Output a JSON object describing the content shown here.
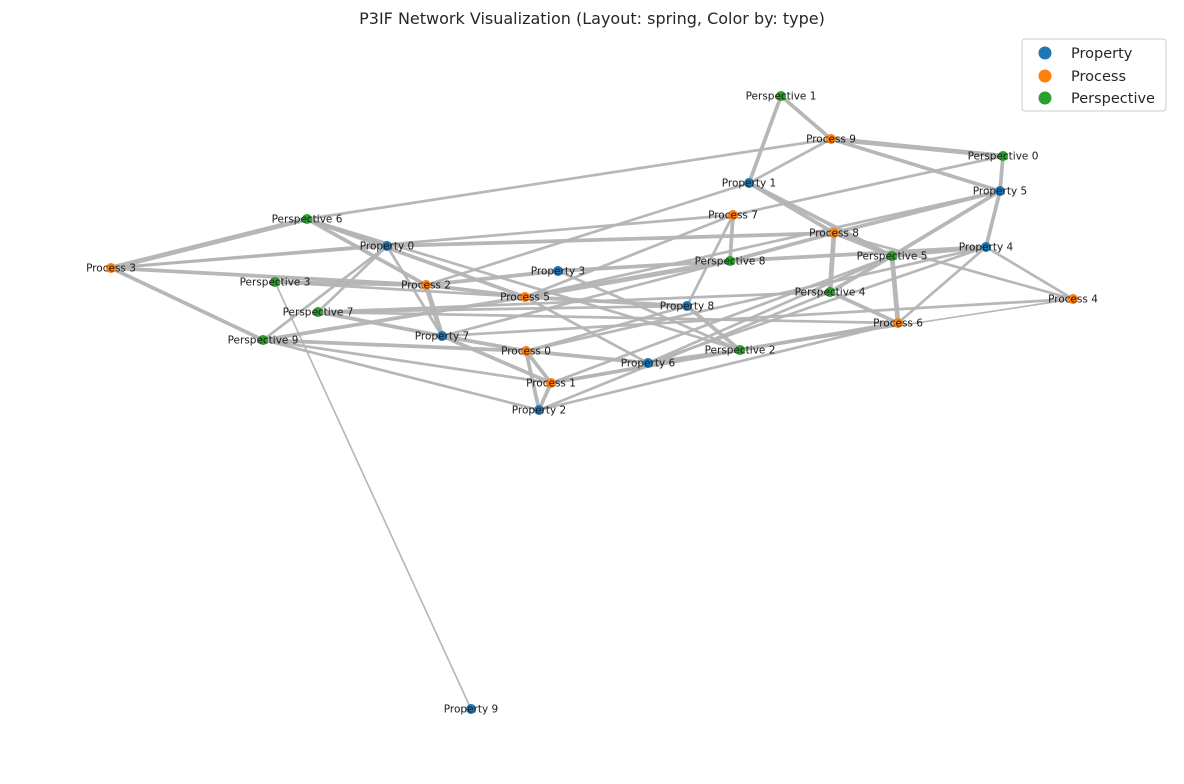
{
  "title": "P3IF Network Visualization (Layout: spring, Color by: type)",
  "legend": {
    "placement": "top-right",
    "items": [
      {
        "label": "Property",
        "color": "#1f77b4"
      },
      {
        "label": "Process",
        "color": "#ff7f0e"
      },
      {
        "label": "Perspective",
        "color": "#2ca02c"
      }
    ]
  },
  "edge_color": "#b3b3b3",
  "nodes": [
    {
      "id": "Perspective 1",
      "type": "Perspective"
    },
    {
      "id": "Process 9",
      "type": "Process"
    },
    {
      "id": "Perspective 0",
      "type": "Perspective"
    },
    {
      "id": "Property 1",
      "type": "Property"
    },
    {
      "id": "Property 5",
      "type": "Property"
    },
    {
      "id": "Process 7",
      "type": "Process"
    },
    {
      "id": "Perspective 6",
      "type": "Perspective"
    },
    {
      "id": "Process 8",
      "type": "Process"
    },
    {
      "id": "Property 0",
      "type": "Property"
    },
    {
      "id": "Property 4",
      "type": "Property"
    },
    {
      "id": "Perspective 5",
      "type": "Perspective"
    },
    {
      "id": "Process 3",
      "type": "Process"
    },
    {
      "id": "Perspective 8",
      "type": "Perspective"
    },
    {
      "id": "Property 3",
      "type": "Property"
    },
    {
      "id": "Perspective 3",
      "type": "Perspective"
    },
    {
      "id": "Process 2",
      "type": "Process"
    },
    {
      "id": "Perspective 4",
      "type": "Perspective"
    },
    {
      "id": "Process 5",
      "type": "Process"
    },
    {
      "id": "Process 4",
      "type": "Process"
    },
    {
      "id": "Property 8",
      "type": "Property"
    },
    {
      "id": "Perspective 7",
      "type": "Perspective"
    },
    {
      "id": "Process 6",
      "type": "Process"
    },
    {
      "id": "Property 7",
      "type": "Property"
    },
    {
      "id": "Perspective 9",
      "type": "Perspective"
    },
    {
      "id": "Process 0",
      "type": "Process"
    },
    {
      "id": "Perspective 2",
      "type": "Perspective"
    },
    {
      "id": "Property 6",
      "type": "Property"
    },
    {
      "id": "Process 1",
      "type": "Process"
    },
    {
      "id": "Property 2",
      "type": "Property"
    },
    {
      "id": "Property 9",
      "type": "Property"
    }
  ],
  "edges": [
    {
      "source": "Perspective 1",
      "target": "Process 9",
      "weight": 3
    },
    {
      "source": "Perspective 1",
      "target": "Property 1",
      "weight": 3
    },
    {
      "source": "Process 9",
      "target": "Perspective 0",
      "weight": 4
    },
    {
      "source": "Process 9",
      "target": "Property 5",
      "weight": 3
    },
    {
      "source": "Process 9",
      "target": "Property 1",
      "weight": 2
    },
    {
      "source": "Process 9",
      "target": "Perspective 6",
      "weight": 2
    },
    {
      "source": "Perspective 0",
      "target": "Property 5",
      "weight": 3
    },
    {
      "source": "Perspective 0",
      "target": "Process 7",
      "weight": 2
    },
    {
      "source": "Property 1",
      "target": "Process 8",
      "weight": 3
    },
    {
      "source": "Property 1",
      "target": "Perspective 5",
      "weight": 3
    },
    {
      "source": "Property 1",
      "target": "Process 2",
      "weight": 2
    },
    {
      "source": "Property 5",
      "target": "Process 8",
      "weight": 3
    },
    {
      "source": "Property 5",
      "target": "Perspective 5",
      "weight": 3
    },
    {
      "source": "Property 5",
      "target": "Property 4",
      "weight": 3
    },
    {
      "source": "Property 5",
      "target": "Process 5",
      "weight": 2
    },
    {
      "source": "Process 7",
      "target": "Perspective 8",
      "weight": 3
    },
    {
      "source": "Process 7",
      "target": "Property 8",
      "weight": 2
    },
    {
      "source": "Process 7",
      "target": "Process 3",
      "weight": 2
    },
    {
      "source": "Process 7",
      "target": "Process 5",
      "weight": 2
    },
    {
      "source": "Perspective 6",
      "target": "Property 0",
      "weight": 3
    },
    {
      "source": "Perspective 6",
      "target": "Process 3",
      "weight": 4
    },
    {
      "source": "Perspective 6",
      "target": "Process 2",
      "weight": 3
    },
    {
      "source": "Perspective 6",
      "target": "Process 5",
      "weight": 3
    },
    {
      "source": "Perspective 6",
      "target": "Perspective 2",
      "weight": 2
    },
    {
      "source": "Process 8",
      "target": "Property 0",
      "weight": 3
    },
    {
      "source": "Process 8",
      "target": "Perspective 5",
      "weight": 3
    },
    {
      "source": "Process 8",
      "target": "Perspective 4",
      "weight": 4
    },
    {
      "source": "Process 8",
      "target": "Process 4",
      "weight": 2
    },
    {
      "source": "Process 8",
      "target": "Perspective 8",
      "weight": 3
    },
    {
      "source": "Property 4",
      "target": "Perspective 5",
      "weight": 3
    },
    {
      "source": "Property 4",
      "target": "Process 4",
      "weight": 2
    },
    {
      "source": "Property 4",
      "target": "Perspective 8",
      "weight": 3
    },
    {
      "source": "Property 4",
      "target": "Process 0",
      "weight": 2
    },
    {
      "source": "Property 4",
      "target": "Process 6",
      "weight": 2
    },
    {
      "source": "Perspective 5",
      "target": "Process 6",
      "weight": 4
    },
    {
      "source": "Perspective 5",
      "target": "Perspective 4",
      "weight": 3
    },
    {
      "source": "Perspective 5",
      "target": "Process 1",
      "weight": 2
    },
    {
      "source": "Process 3",
      "target": "Property 0",
      "weight": 2
    },
    {
      "source": "Process 3",
      "target": "Perspective 9",
      "weight": 3
    },
    {
      "source": "Process 3",
      "target": "Process 2",
      "weight": 3
    },
    {
      "source": "Perspective 8",
      "target": "Process 5",
      "weight": 4
    },
    {
      "source": "Perspective 8",
      "target": "Property 3",
      "weight": 3
    },
    {
      "source": "Perspective 8",
      "target": "Property 7",
      "weight": 2
    },
    {
      "source": "Property 3",
      "target": "Process 2",
      "weight": 3
    },
    {
      "source": "Property 3",
      "target": "Perspective 2",
      "weight": 2
    },
    {
      "source": "Perspective 3",
      "target": "Process 2",
      "weight": 3
    },
    {
      "source": "Perspective 3",
      "target": "Process 5",
      "weight": 2
    },
    {
      "source": "Perspective 3",
      "target": "Property 9",
      "weight": 1
    },
    {
      "source": "Process 2",
      "target": "Property 7",
      "weight": 4
    },
    {
      "source": "Process 2",
      "target": "Process 5",
      "weight": 3
    },
    {
      "source": "Perspective 4",
      "target": "Process 6",
      "weight": 3
    },
    {
      "source": "Perspective 4",
      "target": "Perspective 7",
      "weight": 2
    },
    {
      "source": "Process 5",
      "target": "Property 8",
      "weight": 3
    },
    {
      "source": "Process 5",
      "target": "Property 6",
      "weight": 2
    },
    {
      "source": "Process 4",
      "target": "Property 7",
      "weight": 2
    },
    {
      "source": "Process 4",
      "target": "Perspective 2",
      "weight": 1
    },
    {
      "source": "Property 8",
      "target": "Perspective 7",
      "weight": 2
    },
    {
      "source": "Property 8",
      "target": "Perspective 2",
      "weight": 3
    },
    {
      "source": "Property 8",
      "target": "Process 0",
      "weight": 2
    },
    {
      "source": "Perspective 7",
      "target": "Property 0",
      "weight": 2
    },
    {
      "source": "Perspective 7",
      "target": "Property 7",
      "weight": 3
    },
    {
      "source": "Perspective 7",
      "target": "Process 6",
      "weight": 2
    },
    {
      "source": "Process 6",
      "target": "Perspective 2",
      "weight": 3
    },
    {
      "source": "Process 6",
      "target": "Process 1",
      "weight": 2
    },
    {
      "source": "Property 7",
      "target": "Process 0",
      "weight": 3
    },
    {
      "source": "Property 7",
      "target": "Process 1",
      "weight": 3
    },
    {
      "source": "Perspective 9",
      "target": "Property 0",
      "weight": 2
    },
    {
      "source": "Perspective 9",
      "target": "Process 0",
      "weight": 3
    },
    {
      "source": "Perspective 9",
      "target": "Process 1",
      "weight": 2
    },
    {
      "source": "Perspective 9",
      "target": "Property 2",
      "weight": 2
    },
    {
      "source": "Perspective 9",
      "target": "Process 5",
      "weight": 3
    },
    {
      "source": "Process 0",
      "target": "Property 2",
      "weight": 3
    },
    {
      "source": "Process 0",
      "target": "Property 6",
      "weight": 3
    },
    {
      "source": "Process 0",
      "target": "Process 1",
      "weight": 3
    },
    {
      "source": "Perspective 2",
      "target": "Process 1",
      "weight": 3
    },
    {
      "source": "Perspective 2",
      "target": "Property 6",
      "weight": 3
    },
    {
      "source": "Process 1",
      "target": "Property 2",
      "weight": 3
    },
    {
      "source": "Property 2",
      "target": "Process 6",
      "weight": 2
    },
    {
      "source": "Property 2",
      "target": "Perspective 4",
      "weight": 2
    },
    {
      "source": "Property 0",
      "target": "Property 7",
      "weight": 2
    },
    {
      "source": "Property 6",
      "target": "Property 4",
      "weight": 2
    },
    {
      "source": "Property 6",
      "target": "Perspective 5",
      "weight": 2
    }
  ]
}
